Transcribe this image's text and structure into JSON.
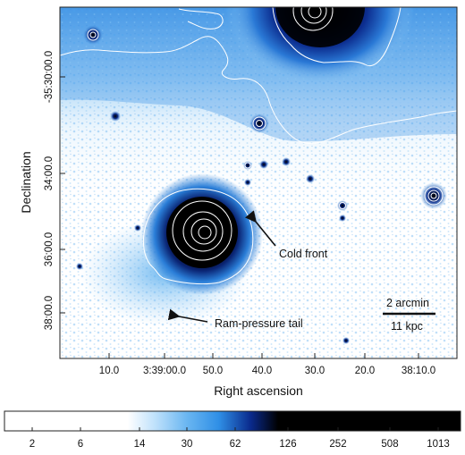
{
  "image": {
    "x_axis": {
      "title": "Right ascension",
      "ticks": [
        "10.0",
        "3:39:00.0",
        "50.0",
        "40.0",
        "30.0",
        "20.0",
        "38:10.0"
      ]
    },
    "y_axis": {
      "title": "Declination",
      "ticks": [
        "-35:30:00.0",
        "34:00.0",
        "36:00.0",
        "38:00.0"
      ]
    },
    "annotations": {
      "cold_front": "Cold front",
      "ram_pressure_tail": "Ram-pressure tail",
      "scale_angular": "2 arcmin",
      "scale_physical": "11 kpc"
    },
    "colorbar": {
      "ticks": [
        "2",
        "6",
        "14",
        "30",
        "62",
        "126",
        "252",
        "508",
        "1013"
      ],
      "scale": "log",
      "colors": [
        "#ffffff",
        "#bfe1fb",
        "#2f8fe6",
        "#0a2a8c",
        "#000000"
      ]
    },
    "contour_color": "#ffffff"
  }
}
